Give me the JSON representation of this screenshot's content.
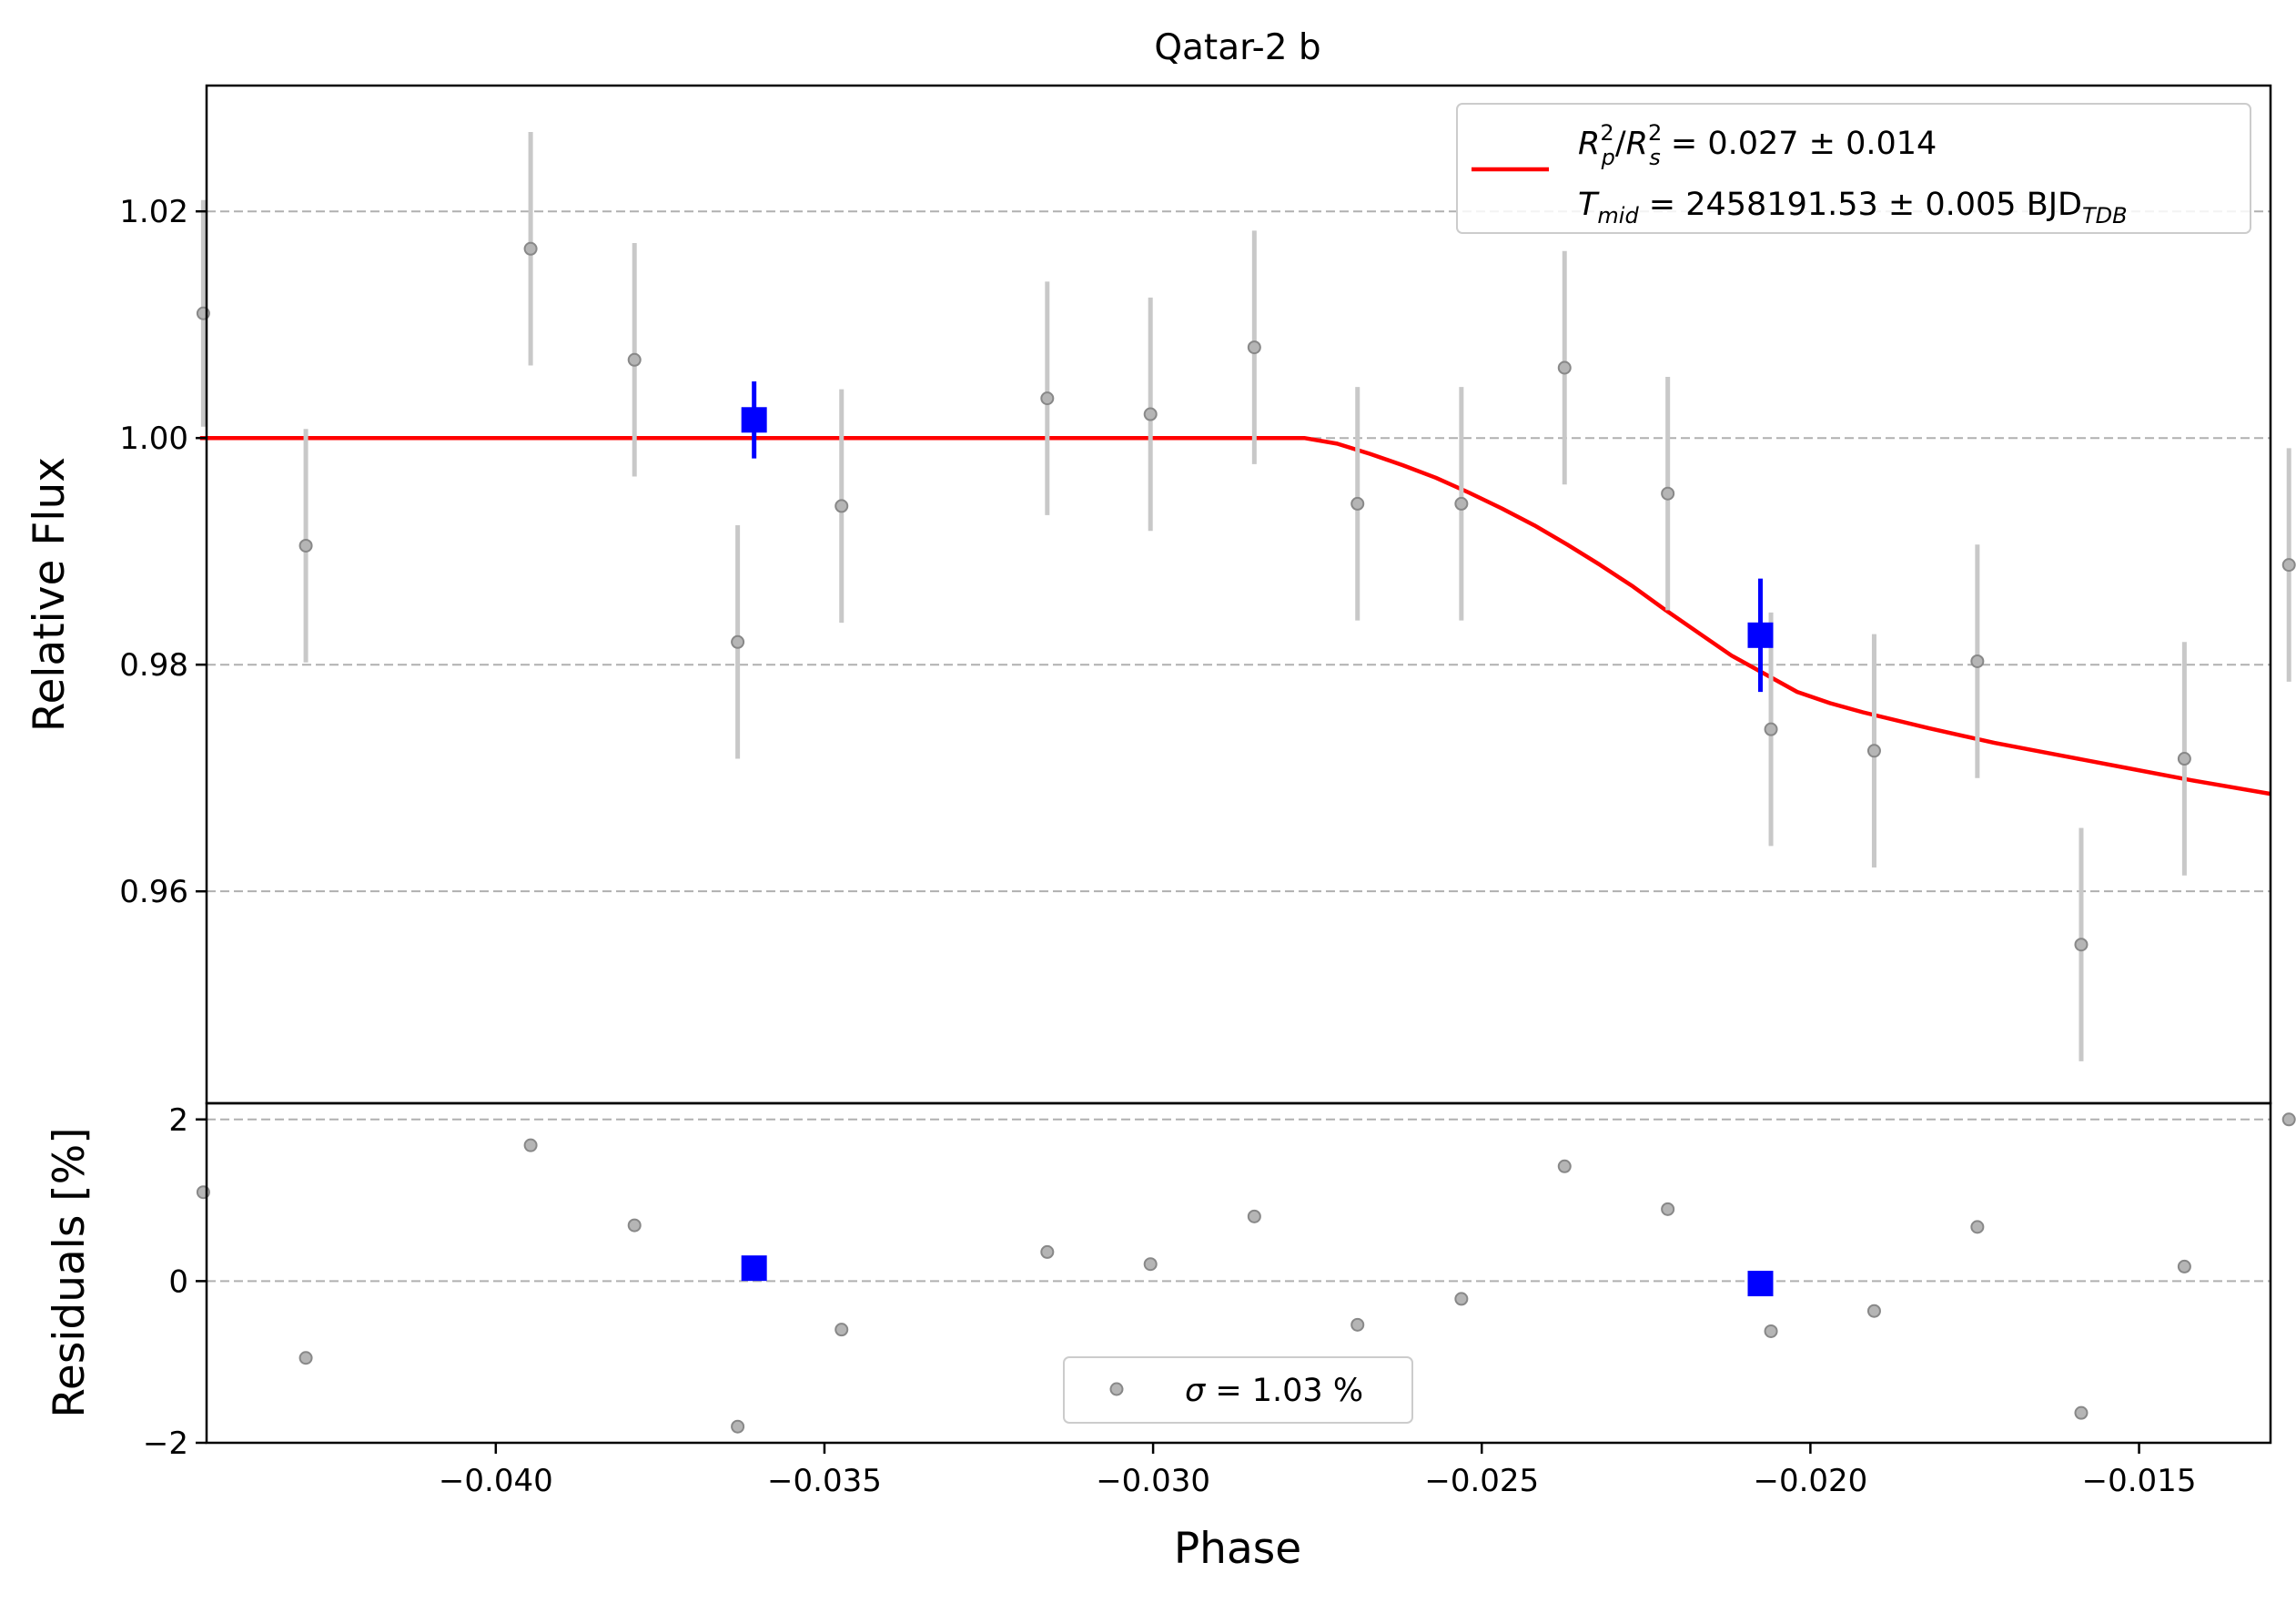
{
  "chart_data": {
    "type": "scatter",
    "title": "Qatar-2 b",
    "xlabel": "Phase",
    "x_range": [
      -0.0444,
      -0.013
    ],
    "x_ticks": [
      -0.04,
      -0.035,
      -0.03,
      -0.025,
      -0.02,
      -0.015
    ],
    "x_tick_labels": [
      "−0.040",
      "−0.035",
      "−0.030",
      "−0.025",
      "−0.020",
      "−0.015"
    ],
    "top_panel": {
      "ylabel": "Relative Flux",
      "y_range": [
        0.9413,
        1.0311
      ],
      "y_ticks": [
        0.96,
        0.98,
        1.0,
        1.02
      ],
      "y_tick_labels": [
        "0.96",
        "0.98",
        "1.00",
        "1.02"
      ],
      "grid": "horizontal dashed",
      "data_points": {
        "color": "#9a9a9a",
        "x": [
          -0.04445,
          -0.04289,
          -0.03947,
          -0.03789,
          -0.03632,
          -0.03474,
          -0.03161,
          -0.03004,
          -0.02846,
          -0.02689,
          -0.02531,
          -0.02374,
          -0.02217,
          -0.0206,
          -0.01903,
          -0.01746,
          -0.01588,
          -0.01431,
          -0.01272
        ],
        "y": [
          1.011,
          0.9905,
          1.0167,
          1.0069,
          0.982,
          0.994,
          1.0035,
          1.0021,
          1.008,
          0.9942,
          0.9942,
          1.0062,
          0.9951,
          0.9743,
          0.9724,
          0.9803,
          0.9553,
          0.9717,
          0.9888
        ],
        "yerr": [
          0.01,
          0.0103,
          0.0103,
          0.0103,
          0.0103,
          0.0103,
          0.0103,
          0.0103,
          0.0103,
          0.0103,
          0.0103,
          0.0103,
          0.0103,
          0.0103,
          0.0103,
          0.0103,
          0.0103,
          0.0103,
          0.0103
        ]
      },
      "binned_points": {
        "color": "#0000ff",
        "x": [
          -0.03607,
          -0.02076
        ],
        "y": [
          1.0016,
          0.9826
        ],
        "yerr": [
          0.0034,
          0.005
        ]
      },
      "model": {
        "color": "#ff0000",
        "x": [
          -0.0445,
          -0.0277,
          -0.0272,
          -0.0267,
          -0.0262,
          -0.0257,
          -0.0252,
          -0.0247,
          -0.0242,
          -0.0237,
          -0.0232,
          -0.0227,
          -0.0222,
          -0.0217,
          -0.0212,
          -0.0207,
          -0.0202,
          -0.0197,
          -0.0192,
          -0.0182,
          -0.0172,
          -0.0162,
          -0.0152,
          -0.0142,
          -0.013
        ],
        "y": [
          1.0,
          1.0,
          0.9995,
          0.9986,
          0.9976,
          0.9965,
          0.9952,
          0.9938,
          0.9923,
          0.9906,
          0.9888,
          0.9869,
          0.9848,
          0.9828,
          0.9808,
          0.9792,
          0.9776,
          0.9766,
          0.9758,
          0.9744,
          0.9731,
          0.972,
          0.9709,
          0.9698,
          0.9686
        ]
      },
      "legend": {
        "position": "upper right",
        "line1": {
          "a": "R",
          "a_sup": "2",
          "a_sub": "p",
          "slash": "/",
          "b": "R",
          "b_sup": "2",
          "b_sub": "s",
          "rest": " = 0.027 ± 0.014"
        },
        "line2": {
          "a": "T",
          "a_sub": "mid",
          "rest": " = 2458191.53 ± 0.005 BJD",
          "tail_sub": "TDB"
        }
      }
    },
    "bottom_panel": {
      "ylabel": "Residuals [%]",
      "y_range": [
        -2.0,
        2.2
      ],
      "y_ticks": [
        -2,
        0,
        2
      ],
      "y_tick_labels": [
        "−2",
        "0",
        "2"
      ],
      "grid_lines": [
        0,
        2
      ],
      "data_points": {
        "x": [
          -0.04445,
          -0.04289,
          -0.03947,
          -0.03789,
          -0.03632,
          -0.03474,
          -0.03161,
          -0.03004,
          -0.02846,
          -0.02689,
          -0.02531,
          -0.02374,
          -0.02217,
          -0.0206,
          -0.01903,
          -0.01746,
          -0.01588,
          -0.01431,
          -0.01272
        ],
        "y": [
          1.1,
          -0.95,
          1.68,
          0.69,
          -1.8,
          -0.6,
          0.36,
          0.21,
          0.8,
          -0.54,
          -0.22,
          1.42,
          0.89,
          -0.62,
          -0.37,
          0.67,
          -1.63,
          0.18,
          2.0
        ]
      },
      "binned_points": {
        "x": [
          -0.03607,
          -0.02076
        ],
        "y": [
          0.16,
          -0.03
        ]
      },
      "legend": {
        "position": "lower center",
        "label_symbol": "σ",
        "label_rest": " = 1.03 %"
      }
    }
  }
}
